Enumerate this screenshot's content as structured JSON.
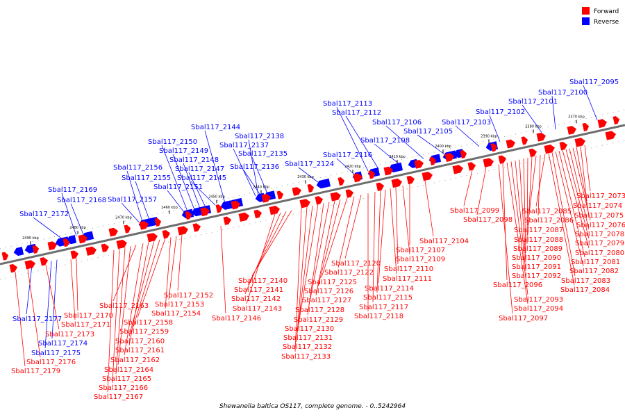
{
  "caption": "Shewanella baltica OS117, complete genome. - 0..5242964",
  "legend": {
    "items": [
      {
        "label": "Forward",
        "color": "#ff0000"
      },
      {
        "label": "Reverse",
        "color": "#0000ff"
      }
    ]
  },
  "colors": {
    "forward": "#ff0000",
    "reverse": "#0000ff",
    "axis": "#6e6e6e"
  },
  "axis": {
    "ticks": [
      "2370 kbp",
      "2380 kbp",
      "2390 kbp",
      "2400 kbp",
      "2410 kbp",
      "2420 kbp",
      "2430 kbp",
      "2440 kbp",
      "2450 kbp",
      "2460 kbp",
      "2470 kbp",
      "2480 kbp",
      "2490 kbp"
    ]
  },
  "genes": {
    "reverse": [
      "Sbal117_2095",
      "Sbal117_2100",
      "Sbal117_2101",
      "Sbal117_2102",
      "Sbal117_2103",
      "Sbal117_2105",
      "Sbal117_2106",
      "Sbal117_2108",
      "Sbal117_2112",
      "Sbal117_2113",
      "Sbal117_2116",
      "Sbal117_2124",
      "Sbal117_2135",
      "Sbal117_2136",
      "Sbal117_2137",
      "Sbal117_2138",
      "Sbal117_2144",
      "Sbal117_2145",
      "Sbal117_2147",
      "Sbal117_2148",
      "Sbal117_2149",
      "Sbal117_2150",
      "Sbal117_2151",
      "Sbal117_2155",
      "Sbal117_2156",
      "Sbal117_2157",
      "Sbal117_2168",
      "Sbal117_2169",
      "Sbal117_2172",
      "Sbal117_2174",
      "Sbal117_2175",
      "Sbal117_2177"
    ],
    "forward": [
      "Sbal117_2073",
      "Sbal117_2074",
      "Sbal117_2075",
      "Sbal117_2076",
      "Sbal117_2078",
      "Sbal117_2079",
      "Sbal117_2080",
      "Sbal117_2081",
      "Sbal117_2082",
      "Sbal117_2083",
      "Sbal117_2084",
      "Sbal117_2085",
      "Sbal117_2086",
      "Sbal117_2087",
      "Sbal117_2088",
      "Sbal117_2089",
      "Sbal117_2090",
      "Sbal117_2091",
      "Sbal117_2092",
      "Sbal117_2093",
      "Sbal117_2094",
      "Sbal117_2096",
      "Sbal117_2097",
      "Sbal117_2098",
      "Sbal117_2099",
      "Sbal117_2104",
      "Sbal117_2107",
      "Sbal117_2109",
      "Sbal117_2110",
      "Sbal117_2111",
      "Sbal117_2114",
      "Sbal117_2115",
      "Sbal117_2117",
      "Sbal117_2118",
      "Sbal117_2120",
      "Sbal117_2122",
      "Sbal117_2125",
      "Sbal117_2126",
      "Sbal117_2127",
      "Sbal117_2128",
      "Sbal117_2129",
      "Sbal117_2130",
      "Sbal117_2131",
      "Sbal117_2132",
      "Sbal117_2133",
      "Sbal117_2140",
      "Sbal117_2141",
      "Sbal117_2142",
      "Sbal117_2143",
      "Sbal117_2146",
      "Sbal117_2152",
      "Sbal117_2153",
      "Sbal117_2154",
      "Sbal117_2158",
      "Sbal117_2159",
      "Sbal117_2160",
      "Sbal117_2161",
      "Sbal117_2162",
      "Sbal117_2163",
      "Sbal117_2164",
      "Sbal117_2165",
      "Sbal117_2166",
      "Sbal117_2167",
      "Sbal117_2170",
      "Sbal117_2171",
      "Sbal117_2173",
      "Sbal117_2176",
      "Sbal117_2179"
    ]
  }
}
